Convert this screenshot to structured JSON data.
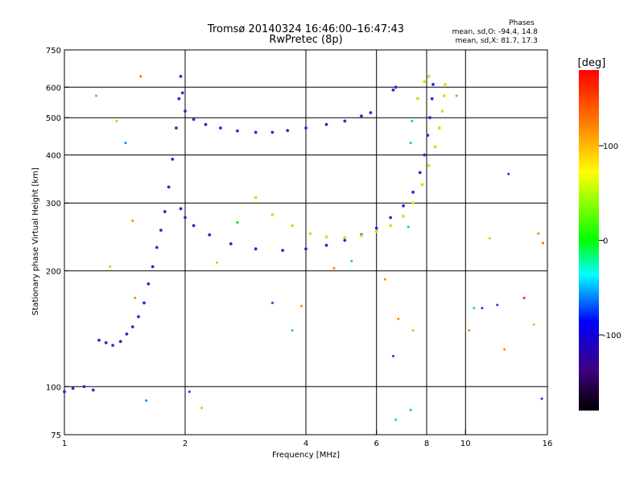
{
  "chart_data": {
    "type": "scatter",
    "title": "Tromsø 20140324 16:46:00–16:47:43",
    "subtitle": "RwPretec (8p)",
    "xlabel": "Frequency [MHz]",
    "ylabel": "Stationary phase Virtual Height [km]",
    "x_scale": "log",
    "y_scale": "log",
    "xlim": [
      1,
      16
    ],
    "ylim": [
      75,
      750
    ],
    "x_ticks": [
      1,
      2,
      4,
      6,
      8,
      10,
      16
    ],
    "x_tick_labels": [
      "1",
      "2",
      "4",
      "6",
      "8",
      "10",
      "16"
    ],
    "y_ticks": [
      75,
      100,
      200,
      300,
      400,
      500,
      600,
      750
    ],
    "y_tick_labels": [
      "75",
      "100",
      "200",
      "300",
      "400",
      "500",
      "600",
      "750"
    ],
    "x_gridlines": [
      2,
      4,
      6,
      8,
      10
    ],
    "y_gridlines": [
      100,
      200,
      300,
      400,
      500,
      600
    ],
    "grid": true,
    "phase_info": {
      "heading": "Phases",
      "o_line": "mean, sd,O: -94.4, 14.8",
      "x_line": "mean, sd,X: 81.7, 17.3"
    },
    "colorbar": {
      "label": "[deg]",
      "range": [
        -180,
        180
      ],
      "ticks": [
        100,
        0,
        -100
      ],
      "tick_labels": [
        "100",
        "0",
        "-100"
      ],
      "colors": [
        "#ff0000",
        "#ff8000",
        "#ffff00",
        "#00ff00",
        "#00ffff",
        "#0000ff",
        "#400080",
        "#000000"
      ]
    },
    "series": [
      {
        "mode": "O",
        "phase": -94.4,
        "color": "#2a2ad6",
        "points": [
          [
            1.0,
            97
          ],
          [
            1.05,
            99
          ],
          [
            1.12,
            100
          ],
          [
            1.18,
            98
          ],
          [
            1.22,
            132
          ],
          [
            1.27,
            130
          ],
          [
            1.32,
            128
          ],
          [
            1.38,
            131
          ],
          [
            1.43,
            137
          ],
          [
            1.48,
            143
          ],
          [
            1.53,
            152
          ],
          [
            1.58,
            165
          ],
          [
            1.62,
            185
          ],
          [
            1.66,
            205
          ],
          [
            1.7,
            230
          ],
          [
            1.74,
            255
          ],
          [
            1.78,
            285
          ],
          [
            1.82,
            330
          ],
          [
            1.86,
            390
          ],
          [
            1.9,
            470
          ],
          [
            1.93,
            560
          ],
          [
            1.95,
            640
          ],
          [
            1.97,
            580
          ],
          [
            2.0,
            520
          ],
          [
            2.1,
            495
          ],
          [
            2.25,
            480
          ],
          [
            2.45,
            470
          ],
          [
            2.7,
            462
          ],
          [
            3.0,
            458
          ],
          [
            3.3,
            458
          ],
          [
            3.6,
            463
          ],
          [
            4.0,
            470
          ],
          [
            4.5,
            480
          ],
          [
            5.0,
            490
          ],
          [
            5.5,
            505
          ],
          [
            5.8,
            515
          ],
          [
            1.95,
            290
          ],
          [
            2.0,
            275
          ],
          [
            2.1,
            262
          ],
          [
            2.3,
            248
          ],
          [
            2.6,
            235
          ],
          [
            3.0,
            228
          ],
          [
            3.5,
            226
          ],
          [
            4.0,
            228
          ],
          [
            4.5,
            233
          ],
          [
            5.0,
            240
          ],
          [
            5.5,
            248
          ],
          [
            6.0,
            258
          ],
          [
            6.5,
            275
          ],
          [
            7.0,
            295
          ],
          [
            7.4,
            320
          ],
          [
            7.7,
            360
          ],
          [
            7.9,
            400
          ],
          [
            8.05,
            450
          ],
          [
            8.15,
            500
          ],
          [
            8.25,
            560
          ],
          [
            8.3,
            610
          ],
          [
            6.6,
            590
          ],
          [
            6.7,
            600
          ]
        ]
      },
      {
        "mode": "X",
        "phase": 81.7,
        "color": "#d8e000",
        "points": [
          [
            3.0,
            310
          ],
          [
            3.3,
            280
          ],
          [
            3.7,
            262
          ],
          [
            4.1,
            250
          ],
          [
            4.5,
            245
          ],
          [
            5.0,
            244
          ],
          [
            5.5,
            247
          ],
          [
            6.0,
            253
          ],
          [
            6.5,
            262
          ],
          [
            7.0,
            277
          ],
          [
            7.4,
            300
          ],
          [
            7.8,
            335
          ],
          [
            8.1,
            375
          ],
          [
            8.4,
            420
          ],
          [
            8.6,
            470
          ],
          [
            8.75,
            520
          ],
          [
            8.85,
            570
          ],
          [
            8.9,
            610
          ],
          [
            7.6,
            560
          ],
          [
            7.9,
            620
          ],
          [
            8.1,
            640
          ]
        ]
      }
    ],
    "scattered_points": [
      [
        1.2,
        570,
        "#ff8800"
      ],
      [
        1.35,
        490,
        "#cccc00"
      ],
      [
        1.55,
        640,
        "#ff6600"
      ],
      [
        1.42,
        430,
        "#0088ff"
      ],
      [
        1.48,
        270,
        "#ff8800"
      ],
      [
        1.3,
        205,
        "#cccc00"
      ],
      [
        1.5,
        170,
        "#ff8800"
      ],
      [
        1.6,
        92,
        "#0088ff"
      ],
      [
        2.05,
        97,
        "#3030cc"
      ],
      [
        2.2,
        88,
        "#cccc00"
      ],
      [
        3.3,
        165,
        "#3030cc"
      ],
      [
        3.9,
        162,
        "#ff8800"
      ],
      [
        3.7,
        140,
        "#00cccc"
      ],
      [
        4.7,
        203,
        "#ff8800"
      ],
      [
        5.2,
        212,
        "#00cccc"
      ],
      [
        6.3,
        190,
        "#ff8800"
      ],
      [
        6.6,
        120,
        "#3030cc"
      ],
      [
        6.7,
        82,
        "#00cccc"
      ],
      [
        6.8,
        150,
        "#ff8800"
      ],
      [
        7.3,
        87,
        "#00cccc"
      ],
      [
        7.4,
        140,
        "#cccc00"
      ],
      [
        7.2,
        260,
        "#00cccc"
      ],
      [
        7.3,
        430,
        "#00cccc"
      ],
      [
        7.35,
        490,
        "#00cccc"
      ],
      [
        10.5,
        160,
        "#00cccc"
      ],
      [
        11.0,
        160,
        "#3030cc"
      ],
      [
        12.0,
        163,
        "#3030cc"
      ],
      [
        12.5,
        125,
        "#ff8800"
      ],
      [
        12.8,
        357,
        "#3030cc"
      ],
      [
        14.0,
        170,
        "#ff2200"
      ],
      [
        14.8,
        145,
        "#cccc00"
      ],
      [
        15.2,
        250,
        "#ff8800"
      ],
      [
        15.6,
        236,
        "#ff6600"
      ],
      [
        15.5,
        93,
        "#3030cc"
      ],
      [
        9.5,
        570,
        "#ff8800"
      ],
      [
        11.5,
        243,
        "#cccc00"
      ],
      [
        10.2,
        140,
        "#ff8800"
      ],
      [
        2.4,
        210,
        "#cccc00"
      ],
      [
        2.7,
        267,
        "#00cc00"
      ]
    ]
  }
}
